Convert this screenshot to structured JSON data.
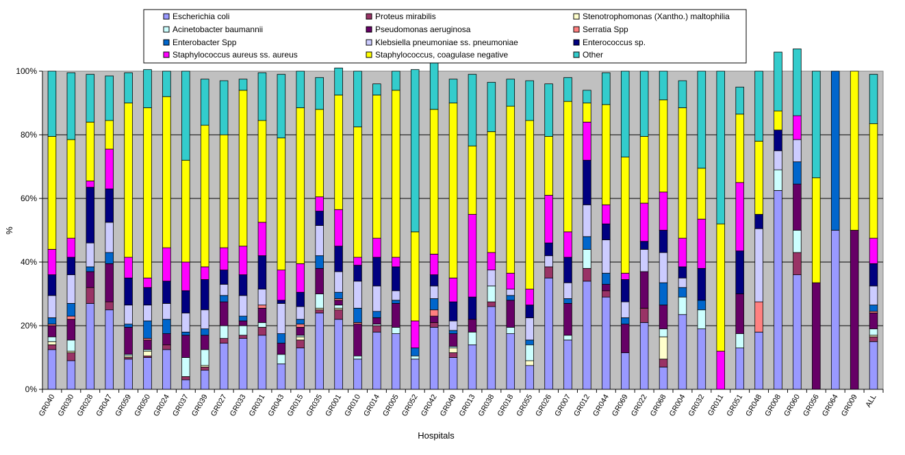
{
  "chart_data": {
    "type": "bar",
    "stacked": true,
    "percent": true,
    "xlabel": "Hospitals",
    "ylabel": "%",
    "ylim": [
      0,
      100
    ],
    "yticks": [
      "0%",
      "20%",
      "40%",
      "60%",
      "80%",
      "100%"
    ],
    "grid": true,
    "legend_position": "top",
    "categories": [
      "GR040",
      "GR030",
      "GR028",
      "GR047",
      "GR059",
      "GR050",
      "GR024",
      "GR037",
      "GR039",
      "GR027",
      "GR033",
      "GR031",
      "GR043",
      "GR015",
      "GR035",
      "GR001",
      "GR010",
      "GR014",
      "GR005",
      "GR052",
      "GR042",
      "GR049",
      "GR013",
      "GR038",
      "GR018",
      "GR055",
      "GR026",
      "GR007",
      "GR012",
      "GR044",
      "GR069",
      "GR022",
      "GR068",
      "GR004",
      "GR032",
      "GR011",
      "GR051",
      "GR048",
      "GR008",
      "GR060",
      "GR056",
      "GR064",
      "GR009",
      "ALL"
    ],
    "series": [
      {
        "name": "Escherichia coli",
        "color": "#9999ff",
        "values": [
          12.5,
          9,
          27,
          25,
          9.5,
          10,
          12.5,
          3,
          6,
          14.5,
          16,
          17,
          8,
          13,
          24,
          22,
          9.5,
          18,
          17.5,
          9.5,
          19.5,
          10,
          14,
          26,
          17.5,
          7.5,
          35,
          15.5,
          34,
          29,
          11.5,
          21,
          7,
          23.5,
          19,
          0,
          13,
          18,
          62.5,
          36,
          0,
          50,
          0,
          15
        ]
      },
      {
        "name": "Proteus mirabilis",
        "color": "#993366",
        "values": [
          1.5,
          2.5,
          5,
          2.5,
          0.5,
          0.5,
          1.5,
          1,
          1,
          1.5,
          1,
          2.5,
          0,
          2.5,
          1,
          3,
          0,
          2,
          0,
          0,
          1.5,
          1.5,
          0,
          1.5,
          0,
          0,
          3.5,
          0,
          4,
          2,
          0,
          4.5,
          2.5,
          0,
          0,
          0,
          0,
          0,
          0,
          7,
          0,
          0,
          0,
          1.5
        ]
      },
      {
        "name": "Stenotrophomonas (Xantho.) maltophilia",
        "color": "#ffffcc",
        "values": [
          1,
          0.5,
          0,
          0,
          0.5,
          1.5,
          0,
          0,
          0.5,
          0,
          0,
          0,
          0,
          1,
          0.5,
          0.5,
          0,
          0,
          0,
          0,
          0,
          1.5,
          0,
          0,
          0,
          1.5,
          0,
          0,
          0,
          0,
          0,
          0,
          7,
          0,
          0,
          0,
          0,
          0,
          0,
          0,
          0,
          0,
          0,
          0.5
        ]
      },
      {
        "name": "Acinetobacter baumannii",
        "color": "#ccffff",
        "values": [
          1.5,
          3.5,
          0,
          0,
          0.5,
          0.5,
          0,
          6,
          5,
          4,
          3,
          1.5,
          3,
          0.5,
          4.5,
          1,
          1,
          0.5,
          2,
          1,
          0,
          0.5,
          4,
          5,
          2,
          5,
          0,
          1.5,
          6,
          0,
          0,
          0,
          2.5,
          5.5,
          6,
          0,
          4.5,
          0,
          6.5,
          7,
          0,
          0,
          0,
          2
        ]
      },
      {
        "name": "Pseudomonas aeruginosa",
        "color": "#660066",
        "values": [
          3.5,
          6.5,
          5,
          12,
          8.5,
          3,
          3.5,
          7,
          4.5,
          7.5,
          1.5,
          4.5,
          3.5,
          2.5,
          8,
          1.5,
          10,
          2,
          7.5,
          0,
          2,
          4,
          4,
          0,
          8.5,
          0,
          0,
          10,
          0,
          2,
          9,
          11.5,
          7.5,
          0,
          0,
          0,
          12.5,
          0,
          0,
          14.5,
          33.5,
          0,
          50,
          5
        ]
      },
      {
        "name": "Serratia Spp",
        "color": "#ff8080",
        "values": [
          0.5,
          1,
          0,
          0,
          0,
          0.5,
          0,
          0,
          0,
          0,
          0,
          1,
          0,
          1,
          0,
          0.5,
          0.5,
          0,
          0,
          0,
          2,
          0,
          0,
          0,
          0,
          0,
          0,
          0,
          0,
          0,
          0,
          0,
          0,
          0,
          0,
          0,
          0,
          9.5,
          0,
          0,
          0,
          0,
          0,
          0.5
        ]
      },
      {
        "name": "Enterobacter Spp",
        "color": "#0066cc",
        "values": [
          2,
          4,
          1.5,
          3.5,
          1,
          5.5,
          4.5,
          1,
          2,
          2,
          1.5,
          0,
          3,
          1.5,
          4,
          2,
          4.5,
          2,
          1,
          2.5,
          3.5,
          1,
          0,
          0,
          1.5,
          1.5,
          0,
          1.5,
          4,
          3.5,
          2,
          0,
          7,
          3,
          3,
          0,
          0,
          0,
          0,
          7,
          0,
          50,
          0,
          2
        ]
      },
      {
        "name": "Klebsiella pneumoniae ss. pneumoniae",
        "color": "#ccccff",
        "values": [
          7,
          9,
          7.5,
          9.5,
          6,
          5,
          5,
          6,
          6,
          3.5,
          6.5,
          5,
          9.5,
          4,
          9.5,
          6.5,
          8.5,
          8,
          3,
          0,
          4,
          3,
          0,
          5,
          2,
          7,
          3.5,
          5,
          10,
          10.5,
          5,
          7,
          9.5,
          3,
          0,
          0,
          0,
          23,
          6,
          7,
          0,
          0,
          0,
          6
        ]
      },
      {
        "name": "Enterococcus sp.",
        "color": "#000080",
        "values": [
          6.5,
          5.5,
          17.5,
          10.5,
          8.5,
          5.5,
          7,
          7,
          9.5,
          4.5,
          6.5,
          10.5,
          1,
          4.5,
          4.5,
          8,
          5,
          9,
          7.5,
          0,
          3.5,
          6,
          7,
          0,
          0,
          4,
          4,
          8,
          14,
          5,
          7,
          2.5,
          7,
          3.5,
          10,
          0,
          13.5,
          4.5,
          6.5,
          0,
          0,
          0,
          0,
          7
        ]
      },
      {
        "name": "Staphylococcus aureus ss. aureus",
        "color": "#ff00ff",
        "values": [
          8,
          6,
          2,
          12.5,
          6.5,
          3,
          10.5,
          9,
          4,
          7,
          9,
          10.5,
          9.5,
          9,
          4.5,
          11.5,
          2.5,
          6,
          3,
          8.5,
          6.5,
          7.5,
          26,
          5.5,
          5,
          5,
          15,
          8,
          12,
          6,
          2,
          12,
          12,
          9,
          15.5,
          12,
          21.5,
          0,
          0,
          7.5,
          0,
          0,
          0,
          8
        ]
      },
      {
        "name": "Staphylococcus, coagulase negative",
        "color": "#ffff00",
        "values": [
          35.5,
          31,
          18.5,
          9,
          48.5,
          53.5,
          47.5,
          32,
          44.5,
          35.5,
          49,
          32,
          41.5,
          49,
          27.5,
          36,
          41,
          45,
          52.5,
          28,
          45.5,
          55,
          21.5,
          38,
          52.5,
          53,
          18.5,
          41,
          6,
          31.5,
          36.5,
          21,
          29,
          41,
          16,
          40,
          21.5,
          23,
          6,
          0,
          33,
          0,
          50,
          36
        ]
      },
      {
        "name": "Other",
        "color": "#33cccc",
        "values": [
          20.5,
          21,
          15,
          14,
          9.5,
          12,
          8,
          28,
          14.5,
          17,
          3.5,
          15,
          20,
          11.5,
          10,
          8.5,
          17.5,
          3.5,
          6,
          51,
          15,
          7.5,
          22.5,
          15.5,
          8.5,
          12.5,
          16.5,
          7.5,
          4,
          10,
          27,
          20.5,
          9,
          8.5,
          30.5,
          48,
          8.5,
          22,
          18.5,
          21,
          33.5,
          0,
          0,
          15.5
        ]
      }
    ]
  }
}
